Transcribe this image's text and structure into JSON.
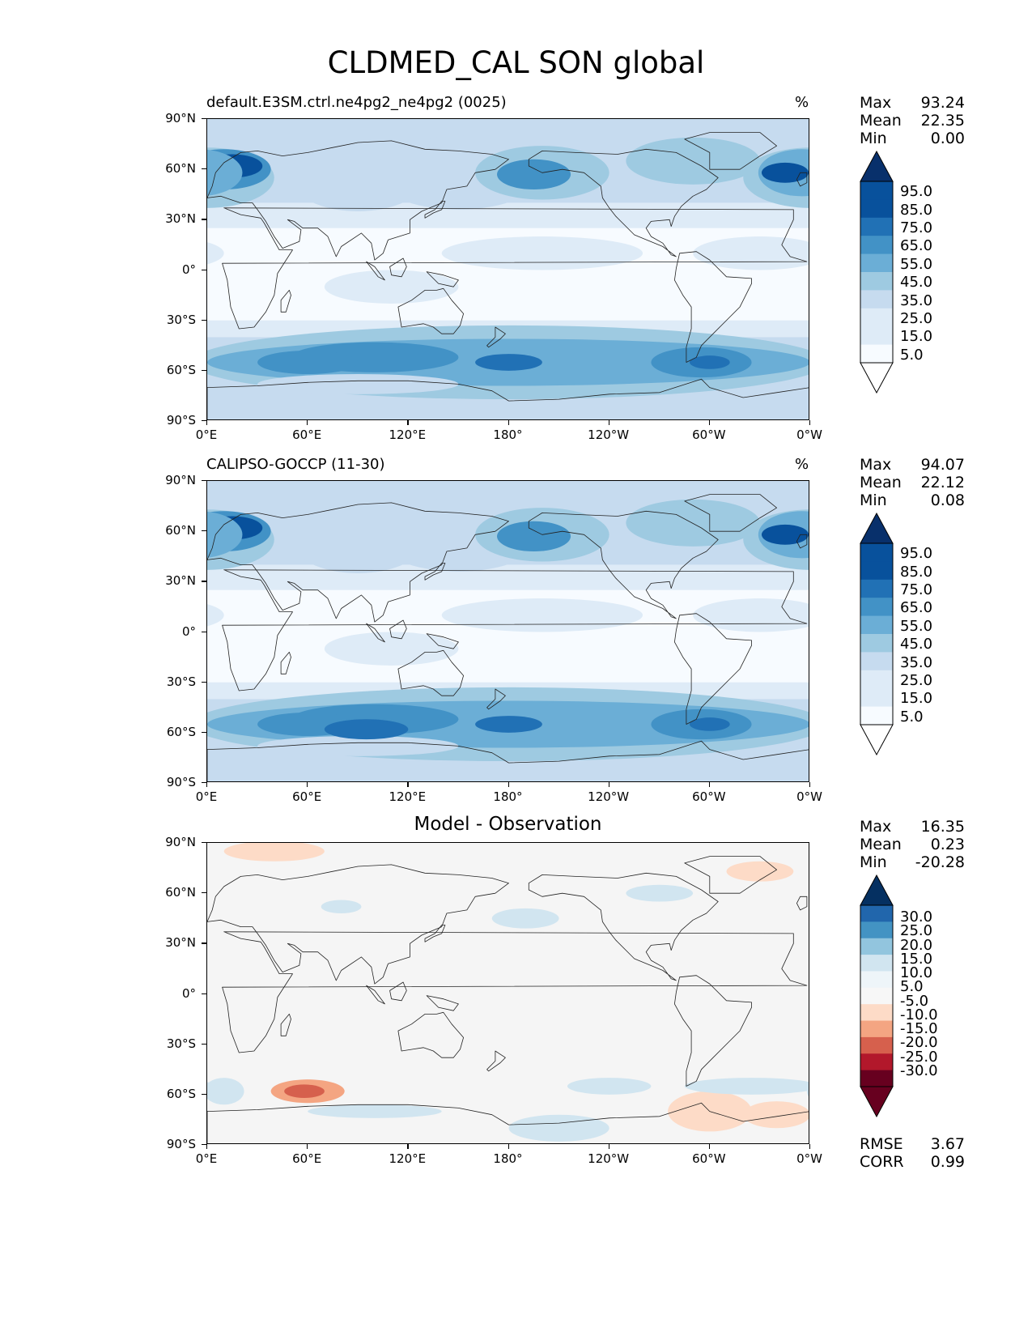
{
  "figure_title": "CLDMED_CAL SON global",
  "panels": [
    {
      "title_left": "default.E3SM.ctrl.ne4pg2_ne4pg2 (0025)",
      "title_right": "%",
      "stats": [
        [
          "Max",
          "93.24"
        ],
        [
          "Mean",
          "22.35"
        ],
        [
          "Min",
          "0.00"
        ]
      ],
      "colorbar_labels": [
        "95.0",
        "85.0",
        "75.0",
        "65.0",
        "55.0",
        "45.0",
        "35.0",
        "25.0",
        "15.0",
        "5.0"
      ]
    },
    {
      "title_left": "CALIPSO-GOCCP (11-30)",
      "title_right": "%",
      "stats": [
        [
          "Max",
          "94.07"
        ],
        [
          "Mean",
          "22.12"
        ],
        [
          "Min",
          "0.08"
        ]
      ],
      "colorbar_labels": [
        "95.0",
        "85.0",
        "75.0",
        "65.0",
        "55.0",
        "45.0",
        "35.0",
        "25.0",
        "15.0",
        "5.0"
      ]
    },
    {
      "title_center": "Model - Observation",
      "stats": [
        [
          "Max",
          "16.35"
        ],
        [
          "Mean",
          "0.23"
        ],
        [
          "Min",
          "-20.28"
        ]
      ],
      "colorbar_labels": [
        "30.0",
        "25.0",
        "20.0",
        "15.0",
        "10.0",
        "5.0",
        "-5.0",
        "-10.0",
        "-15.0",
        "-20.0",
        "-25.0",
        "-30.0"
      ],
      "metrics": [
        [
          "RMSE",
          "3.67"
        ],
        [
          "CORR",
          "0.99"
        ]
      ]
    }
  ],
  "axes": {
    "lat_ticks": [
      "90°N",
      "60°N",
      "30°N",
      "0°",
      "30°S",
      "60°S",
      "90°S"
    ],
    "lon_ticks": [
      "0°E",
      "60°E",
      "120°E",
      "180°",
      "120°W",
      "60°W",
      "0°W"
    ]
  },
  "colors": {
    "blues": [
      "#f7fbff",
      "#deebf7",
      "#c6dbef",
      "#9ecae1",
      "#6baed6",
      "#4292c6",
      "#2171b5",
      "#08519c",
      "#08306b"
    ],
    "diff_neg": [
      "#fddbc7",
      "#f4a582",
      "#d6604d",
      "#b2182b",
      "#67001f"
    ],
    "diff_pos": [
      "#d1e5f0",
      "#92c5de",
      "#4393c3",
      "#2166ac",
      "#053061"
    ],
    "neutral": "#f5f5f5"
  }
}
